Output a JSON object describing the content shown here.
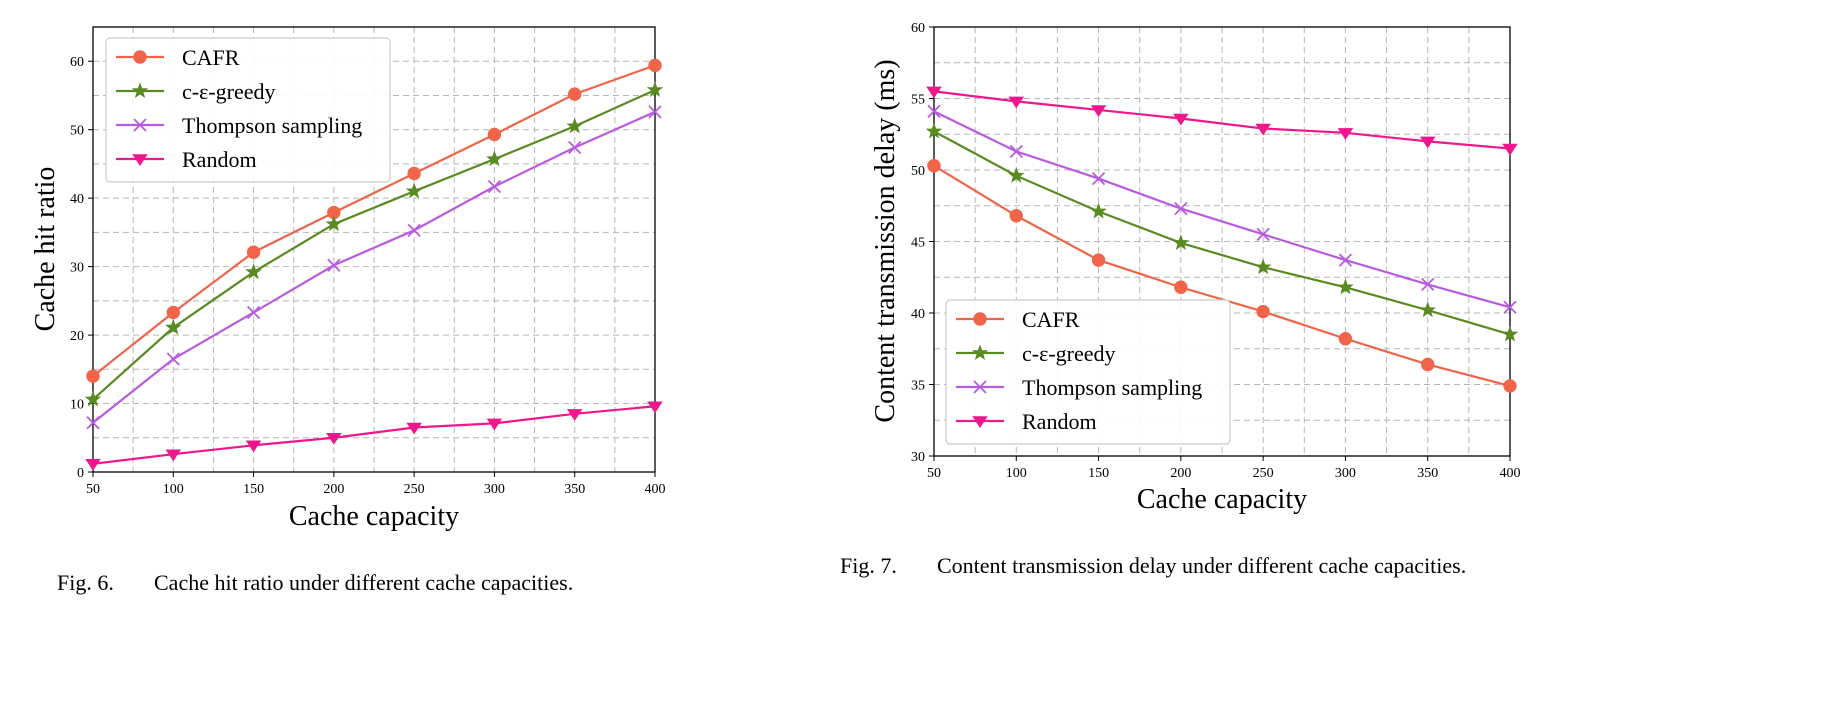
{
  "chart_data": [
    {
      "type": "line",
      "title": "",
      "xlabel": "Cache capacity",
      "ylabel": "Cache hit ratio",
      "x": [
        50,
        100,
        150,
        200,
        250,
        300,
        350,
        400
      ],
      "xlim": [
        50,
        400
      ],
      "ylim": [
        0,
        65
      ],
      "xticks": [
        50,
        100,
        150,
        200,
        250,
        300,
        350,
        400
      ],
      "yticks": [
        0,
        10,
        20,
        30,
        40,
        50,
        60
      ],
      "grid": true,
      "legend_position": "top-left",
      "caption_label": "Fig. 6.",
      "caption_text": "Cache hit ratio under different cache capacities.",
      "series": [
        {
          "name": "CAFR",
          "marker": "circle",
          "color": "#f06449",
          "values": [
            14.0,
            23.3,
            32.1,
            37.9,
            43.6,
            49.3,
            55.2,
            59.4
          ]
        },
        {
          "name": "c-ε-greedy",
          "marker": "star",
          "color": "#5a8a22",
          "values": [
            10.6,
            21.1,
            29.2,
            36.2,
            41.0,
            45.7,
            50.5,
            55.8
          ]
        },
        {
          "name": "Thompson sampling",
          "marker": "x",
          "color": "#b95be0",
          "values": [
            7.2,
            16.5,
            23.3,
            30.2,
            35.3,
            41.7,
            47.4,
            52.6
          ]
        },
        {
          "name": "Random",
          "marker": "triangle-down",
          "color": "#f0168c",
          "values": [
            1.2,
            2.6,
            3.9,
            5.0,
            6.5,
            7.1,
            8.5,
            9.6
          ]
        }
      ]
    },
    {
      "type": "line",
      "title": "",
      "xlabel": "Cache capacity",
      "ylabel": "Content transmission delay (ms)",
      "x": [
        50,
        100,
        150,
        200,
        250,
        300,
        350,
        400
      ],
      "xlim": [
        50,
        400
      ],
      "ylim": [
        30,
        60
      ],
      "xticks": [
        50,
        100,
        150,
        200,
        250,
        300,
        350,
        400
      ],
      "yticks": [
        30,
        35,
        40,
        45,
        50,
        55,
        60
      ],
      "grid": true,
      "legend_position": "bottom-left",
      "caption_label": "Fig. 7.",
      "caption_text": "Content transmission delay under different cache capacities.",
      "series": [
        {
          "name": "CAFR",
          "marker": "circle",
          "color": "#f06449",
          "values": [
            50.3,
            46.8,
            43.7,
            41.8,
            40.1,
            38.2,
            36.4,
            34.9
          ]
        },
        {
          "name": "c-ε-greedy",
          "marker": "star",
          "color": "#5a8a22",
          "values": [
            52.7,
            49.6,
            47.1,
            44.9,
            43.2,
            41.8,
            40.2,
            38.5
          ]
        },
        {
          "name": "Thompson sampling",
          "marker": "x",
          "color": "#b95be0",
          "values": [
            54.1,
            51.3,
            49.4,
            47.3,
            45.5,
            43.7,
            42.0,
            40.4
          ]
        },
        {
          "name": "Random",
          "marker": "triangle-down",
          "color": "#f0168c",
          "values": [
            55.5,
            54.8,
            54.2,
            53.6,
            52.9,
            52.6,
            52.0,
            51.5
          ]
        }
      ]
    }
  ]
}
